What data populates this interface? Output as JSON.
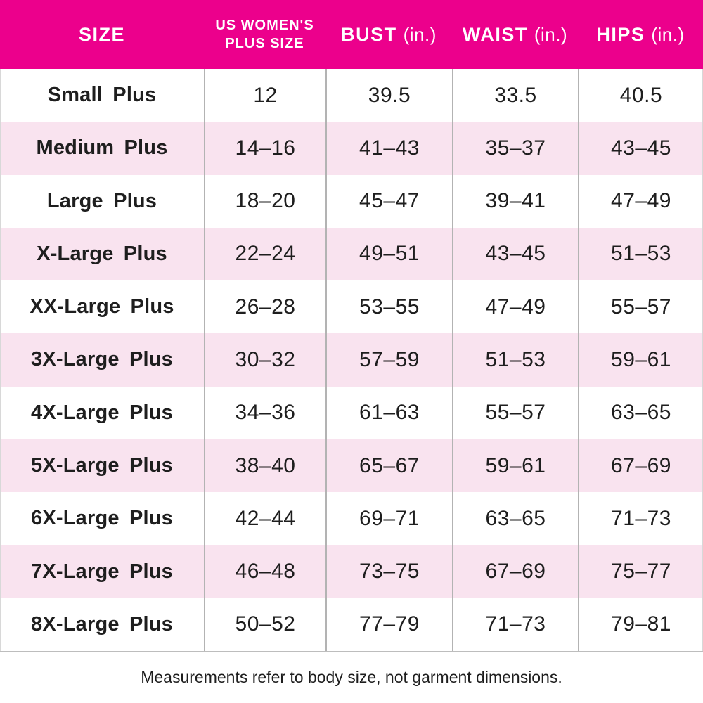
{
  "colors": {
    "header_bg": "#EC008C",
    "header_text": "#FFFFFF",
    "row_bg": "#FFFFFF",
    "row_alt_bg": "#F9E3EF",
    "text": "#1E1E1E",
    "divider": "#B3B3B3",
    "outer_border": "#BDBDBD",
    "side_border": "#D8D8D8"
  },
  "header": {
    "columns": [
      {
        "title": "SIZE"
      },
      {
        "title_line1": "US WOMEN'S",
        "title_line2": "PLUS SIZE"
      },
      {
        "title": "BUST",
        "unit": "(in.)"
      },
      {
        "title": "WAIST",
        "unit": "(in.)"
      },
      {
        "title": "HIPS",
        "unit": "(in.)"
      }
    ]
  },
  "table": {
    "rows": [
      {
        "size": "Small Plus",
        "us_size": "12",
        "bust": "39.5",
        "waist": "33.5",
        "hips": "40.5"
      },
      {
        "size": "Medium Plus",
        "us_size": "14–16",
        "bust": "41–43",
        "waist": "35–37",
        "hips": "43–45"
      },
      {
        "size": "Large Plus",
        "us_size": "18–20",
        "bust": "45–47",
        "waist": "39–41",
        "hips": "47–49"
      },
      {
        "size": "X-Large Plus",
        "us_size": "22–24",
        "bust": "49–51",
        "waist": "43–45",
        "hips": "51–53"
      },
      {
        "size": "XX-Large Plus",
        "us_size": "26–28",
        "bust": "53–55",
        "waist": "47–49",
        "hips": "55–57"
      },
      {
        "size": "3X-Large Plus",
        "us_size": "30–32",
        "bust": "57–59",
        "waist": "51–53",
        "hips": "59–61"
      },
      {
        "size": "4X-Large Plus",
        "us_size": "34–36",
        "bust": "61–63",
        "waist": "55–57",
        "hips": "63–65"
      },
      {
        "size": "5X-Large Plus",
        "us_size": "38–40",
        "bust": "65–67",
        "waist": "59–61",
        "hips": "67–69"
      },
      {
        "size": "6X-Large Plus",
        "us_size": "42–44",
        "bust": "69–71",
        "waist": "63–65",
        "hips": "71–73"
      },
      {
        "size": "7X-Large Plus",
        "us_size": "46–48",
        "bust": "73–75",
        "waist": "67–69",
        "hips": "75–77"
      },
      {
        "size": "8X-Large Plus",
        "us_size": "50–52",
        "bust": "77–79",
        "waist": "71–73",
        "hips": "79–81"
      }
    ]
  },
  "footer": {
    "note": "Measurements refer to body size, not garment dimensions."
  },
  "chart_data": {
    "type": "table",
    "title": "US Women's Plus Size Chart",
    "columns": [
      "SIZE",
      "US WOMEN'S PLUS SIZE",
      "BUST (in.)",
      "WAIST (in.)",
      "HIPS (in.)"
    ],
    "rows": [
      [
        "Small Plus",
        "12",
        "39.5",
        "33.5",
        "40.5"
      ],
      [
        "Medium Plus",
        "14–16",
        "41–43",
        "35–37",
        "43–45"
      ],
      [
        "Large Plus",
        "18–20",
        "45–47",
        "39–41",
        "47–49"
      ],
      [
        "X-Large Plus",
        "22–24",
        "49–51",
        "43–45",
        "51–53"
      ],
      [
        "XX-Large Plus",
        "26–28",
        "53–55",
        "47–49",
        "55–57"
      ],
      [
        "3X-Large Plus",
        "30–32",
        "57–59",
        "51–53",
        "59–61"
      ],
      [
        "4X-Large Plus",
        "34–36",
        "61–63",
        "55–57",
        "63–65"
      ],
      [
        "5X-Large Plus",
        "38–40",
        "65–67",
        "59–61",
        "67–69"
      ],
      [
        "6X-Large Plus",
        "42–44",
        "69–71",
        "63–65",
        "71–73"
      ],
      [
        "7X-Large Plus",
        "46–48",
        "73–75",
        "67–69",
        "75–77"
      ],
      [
        "8X-Large Plus",
        "50–52",
        "77–79",
        "71–73",
        "79–81"
      ]
    ],
    "footnote": "Measurements refer to body size, not garment dimensions.",
    "layout": {
      "alternating_row_shading": true,
      "header_fill": "#EC008C",
      "alt_row_fill": "#F9E3EF"
    }
  }
}
